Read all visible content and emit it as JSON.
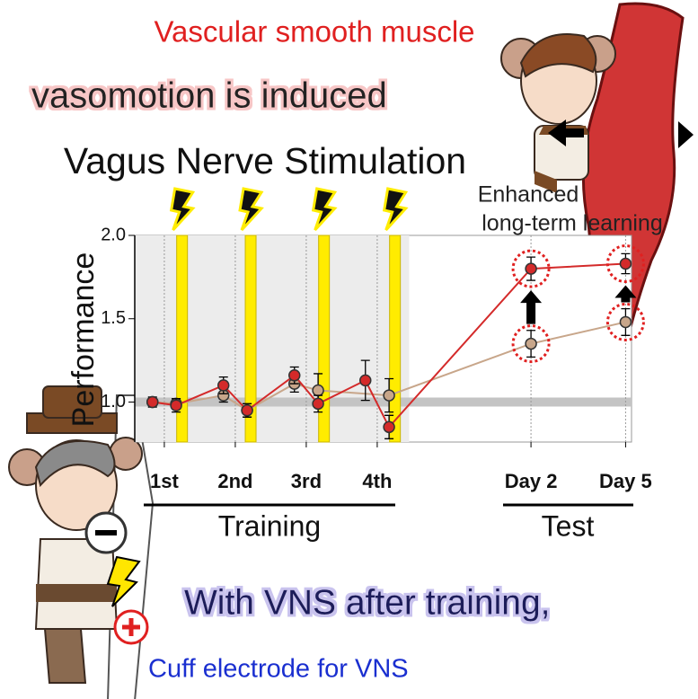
{
  "chart_data": {
    "type": "line",
    "title": "Vagus Nerve Stimulation",
    "header": "Vascular smooth muscle",
    "subheader": "vasomotion is induced",
    "ylabel": "Performance",
    "annotation": [
      "Enhanced",
      "long-term learning"
    ],
    "group_labels": [
      "Training",
      "Test"
    ],
    "footer": "With VNS after training,",
    "caption": "Cuff electrode for VNS",
    "xlim": [
      0,
      21
    ],
    "xticks": [
      {
        "value": 1.25,
        "label": "1st"
      },
      {
        "value": 4.25,
        "label": "2nd"
      },
      {
        "value": 7.25,
        "label": "3rd"
      },
      {
        "value": 10.25,
        "label": "4th"
      },
      {
        "value": 16.75,
        "label": "Day 2"
      },
      {
        "value": 20.75,
        "label": "Day 5"
      }
    ],
    "ylim": [
      0.76,
      2.0
    ],
    "yticks": [
      {
        "value": 1,
        "label": "1.0"
      },
      1.5,
      {
        "value": 2,
        "label": "2.0"
      }
    ],
    "vns_x": [
      2.0,
      4.9,
      8.0,
      11.0
    ],
    "baseline": 1,
    "series": [
      {
        "color": "#c8a68a",
        "x": [
          0.75,
          1.75,
          3.75,
          4.75,
          6.75,
          7.75,
          10.75,
          16.75,
          20.75
        ],
        "values": [
          1.0,
          0.99,
          1.04,
          0.95,
          1.11,
          1.07,
          1.04,
          1.35,
          1.48
        ],
        "errors": [
          0.02,
          0.03,
          0.04,
          0.04,
          0.05,
          0.1,
          0.1,
          0.08,
          0.08
        ]
      },
      {
        "color": "#d42a2a",
        "x": [
          0.75,
          1.75,
          3.75,
          4.75,
          6.75,
          7.75,
          9.75,
          10.75,
          16.75,
          20.75
        ],
        "values": [
          1.0,
          0.98,
          1.1,
          0.95,
          1.16,
          0.99,
          1.13,
          0.85,
          1.8,
          1.83
        ],
        "errors": [
          0.03,
          0.04,
          0.05,
          0.04,
          0.05,
          0.05,
          0.12,
          0.07,
          0.07,
          0.06
        ]
      }
    ]
  }
}
